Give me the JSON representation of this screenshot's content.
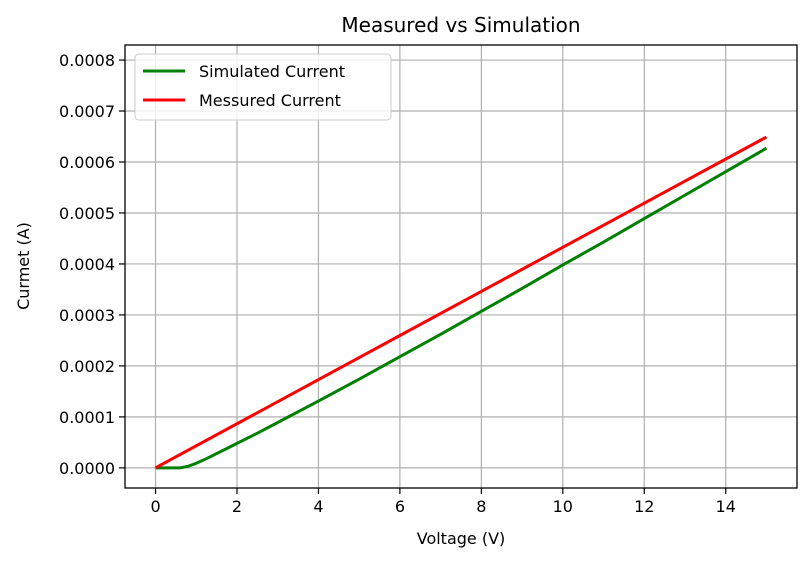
{
  "chart_data": {
    "type": "line",
    "title": "Measured vs Simulation",
    "xlabel": "Voltage (V)",
    "ylabel": "Curmet (A)",
    "xlim": [
      -0.75,
      15.75
    ],
    "ylim": [
      -3.95e-05,
      0.0008295
    ],
    "xticks": [
      0,
      2,
      4,
      6,
      8,
      10,
      12,
      14
    ],
    "xtick_labels": [
      "0",
      "2",
      "4",
      "6",
      "8",
      "10",
      "12",
      "14"
    ],
    "yticks": [
      0,
      0.0001,
      0.0002,
      0.0003,
      0.0004,
      0.0005,
      0.0006,
      0.0007,
      0.0008
    ],
    "ytick_labels": [
      "0.0000",
      "0.0001",
      "0.0002",
      "0.0003",
      "0.0004",
      "0.0005",
      "0.0006",
      "0.0007",
      "0.0008"
    ],
    "grid": true,
    "legend_position": "top-left",
    "series": [
      {
        "name": "Simulated Current",
        "color": "#008000",
        "x": [
          0,
          0.3,
          0.6,
          0.8,
          1.0,
          1.25,
          1.5,
          1.75,
          2.0,
          2.5,
          3.0,
          4.0,
          5.0,
          6.0,
          7.0,
          8.0,
          9.0,
          10.0,
          11.0,
          12.0,
          13.0,
          14.0,
          15.0
        ],
        "y": [
          0,
          0,
          0,
          3e-06,
          9e-06,
          1.8e-05,
          2.8e-05,
          3.8e-05,
          4.8e-05,
          6.8e-05,
          8.9e-05,
          0.000131,
          0.000174,
          0.000218,
          0.000262,
          0.000307,
          0.000352,
          0.000398,
          0.000443,
          0.000489,
          0.000535,
          0.000581,
          0.000627
        ]
      },
      {
        "name": "Messured Current",
        "color": "#ff0000",
        "x": [
          0,
          15
        ],
        "y": [
          0,
          0.000649
        ]
      }
    ]
  }
}
